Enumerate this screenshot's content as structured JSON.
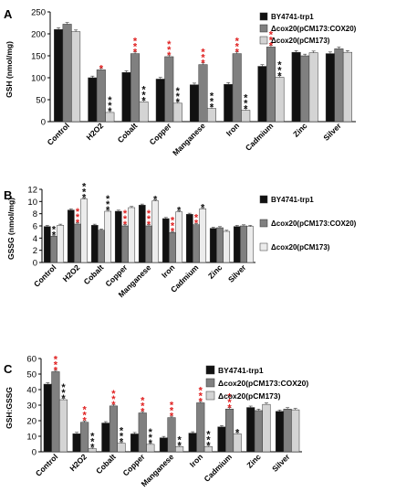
{
  "chart_data": [
    {
      "panel": "A",
      "type": "bar",
      "ylabel": "GSH (nmol/mg)",
      "ylim": [
        0,
        250
      ],
      "yticks": [
        0,
        50,
        100,
        150,
        200,
        250
      ],
      "categories": [
        "Control",
        "H2O2",
        "Cobalt",
        "Copper",
        "Manganese",
        "Iron",
        "Cadmium",
        "Zinc",
        "Silver"
      ],
      "legend_position": "top-right",
      "series": [
        {
          "name": "BY4741-trp1",
          "color": "#111111",
          "values": [
            210,
            100,
            112,
            97,
            84,
            85,
            126,
            158,
            155
          ]
        },
        {
          "name": "Δcox20(pCM173:COX20)",
          "color": "#808080",
          "values": [
            222,
            118,
            155,
            148,
            130,
            155,
            170,
            150,
            166
          ]
        },
        {
          "name": "Δcox20(pCM173)",
          "color": "#d4d4d4",
          "values": [
            205,
            21,
            45,
            42,
            30,
            26,
            101,
            157,
            158
          ]
        }
      ],
      "annotations": [
        {
          "category": "H2O2",
          "series": 1,
          "label": "*",
          "color": "#e02020"
        },
        {
          "category": "H2O2",
          "series": 2,
          "label": "***",
          "color": "#111111"
        },
        {
          "category": "Cobalt",
          "series": 1,
          "label": "***",
          "color": "#e02020"
        },
        {
          "category": "Cobalt",
          "series": 2,
          "label": "***",
          "color": "#111111"
        },
        {
          "category": "Copper",
          "series": 1,
          "label": "***",
          "color": "#e02020"
        },
        {
          "category": "Copper",
          "series": 2,
          "label": "***",
          "color": "#111111"
        },
        {
          "category": "Manganese",
          "series": 1,
          "label": "***",
          "color": "#e02020"
        },
        {
          "category": "Manganese",
          "series": 2,
          "label": "***",
          "color": "#111111"
        },
        {
          "category": "Iron",
          "series": 1,
          "label": "***",
          "color": "#e02020"
        },
        {
          "category": "Iron",
          "series": 2,
          "label": "***",
          "color": "#111111"
        },
        {
          "category": "Cadmium",
          "series": 1,
          "label": "***",
          "color": "#e02020"
        },
        {
          "category": "Cadmium",
          "series": 2,
          "label": "***",
          "color": "#111111"
        }
      ]
    },
    {
      "panel": "B",
      "type": "bar",
      "ylabel": "GSSG (nmol/mg)",
      "ylim": [
        0,
        12
      ],
      "yticks": [
        0,
        2,
        4,
        6,
        8,
        10,
        12
      ],
      "categories": [
        "Control",
        "H2O2",
        "Cobalt",
        "Copper",
        "Manganese",
        "Iron",
        "Cadmium",
        "Zinc",
        "Silver"
      ],
      "legend_position": "right",
      "series": [
        {
          "name": "BY4741-trp1",
          "color": "#111111",
          "values": [
            5.9,
            8.6,
            6.1,
            8.4,
            9.4,
            7.2,
            7.9,
            5.6,
            5.9
          ]
        },
        {
          "name": "Δcox20(pCM173:COX20)",
          "color": "#808080",
          "values": [
            4.3,
            6.3,
            5.3,
            6.0,
            6.0,
            4.9,
            6.2,
            5.7,
            6.0
          ]
        },
        {
          "name": "Δcox20(pCM173)",
          "color": "#ececec",
          "values": [
            6.1,
            10.4,
            8.4,
            9.0,
            10.1,
            8.3,
            8.8,
            5.1,
            5.9
          ]
        }
      ],
      "annotations": [
        {
          "category": "Control",
          "series": 1,
          "label": "**",
          "color": "#111111"
        },
        {
          "category": "H2O2",
          "series": 1,
          "label": "***",
          "color": "#e02020"
        },
        {
          "category": "H2O2",
          "series": 2,
          "label": "***",
          "color": "#111111"
        },
        {
          "category": "Cobalt",
          "series": 2,
          "label": "***",
          "color": "#111111"
        },
        {
          "category": "Copper",
          "series": 1,
          "label": "***",
          "color": "#e02020"
        },
        {
          "category": "Manganese",
          "series": 1,
          "label": "***",
          "color": "#e02020"
        },
        {
          "category": "Manganese",
          "series": 2,
          "label": "*",
          "color": "#111111"
        },
        {
          "category": "Iron",
          "series": 1,
          "label": "***",
          "color": "#e02020"
        },
        {
          "category": "Iron",
          "series": 2,
          "label": "*",
          "color": "#111111"
        },
        {
          "category": "Cadmium",
          "series": 1,
          "label": "**",
          "color": "#e02020"
        },
        {
          "category": "Cadmium",
          "series": 2,
          "label": "*",
          "color": "#111111"
        }
      ]
    },
    {
      "panel": "C",
      "type": "bar",
      "ylabel": "GSH:GSSG",
      "ylim": [
        0,
        60
      ],
      "yticks": [
        0,
        10,
        20,
        30,
        40,
        50,
        60
      ],
      "categories": [
        "Control",
        "H2O2",
        "Cobalt",
        "Copper",
        "Manganese",
        "Iron",
        "Cadmium",
        "Zinc",
        "Silver"
      ],
      "legend_position": "top-right",
      "series": [
        {
          "name": "BY4741-trp1",
          "color": "#111111",
          "values": [
            43.5,
            11.6,
            18.5,
            11.5,
            9.0,
            12.0,
            16.0,
            28.5,
            26.0
          ]
        },
        {
          "name": "Δcox20(pCM173:COX20)",
          "color": "#808080",
          "values": [
            51.5,
            19.0,
            29.5,
            25.0,
            22.0,
            31.5,
            27.5,
            26.5,
            27.5
          ]
        },
        {
          "name": "Δcox20(pCM173)",
          "color": "#d4d4d4",
          "values": [
            33.5,
            2.0,
            5.5,
            4.8,
            3.3,
            3.3,
            11.5,
            30.5,
            27.0
          ]
        }
      ],
      "annotations": [
        {
          "category": "Control",
          "series": 1,
          "label": "***",
          "color": "#e02020"
        },
        {
          "category": "Control",
          "series": 2,
          "label": "***",
          "color": "#111111"
        },
        {
          "category": "H2O2",
          "series": 1,
          "label": "***",
          "color": "#e02020"
        },
        {
          "category": "H2O2",
          "series": 2,
          "label": "***",
          "color": "#111111"
        },
        {
          "category": "Cobalt",
          "series": 1,
          "label": "***",
          "color": "#e02020"
        },
        {
          "category": "Cobalt",
          "series": 2,
          "label": "***",
          "color": "#111111"
        },
        {
          "category": "Copper",
          "series": 1,
          "label": "***",
          "color": "#e02020"
        },
        {
          "category": "Copper",
          "series": 2,
          "label": "***",
          "color": "#111111"
        },
        {
          "category": "Manganese",
          "series": 1,
          "label": "***",
          "color": "#e02020"
        },
        {
          "category": "Manganese",
          "series": 2,
          "label": "**",
          "color": "#111111"
        },
        {
          "category": "Iron",
          "series": 1,
          "label": "***",
          "color": "#e02020"
        },
        {
          "category": "Iron",
          "series": 2,
          "label": "***",
          "color": "#111111"
        },
        {
          "category": "Cadmium",
          "series": 1,
          "label": "***",
          "color": "#e02020"
        },
        {
          "category": "Cadmium",
          "series": 2,
          "label": "*",
          "color": "#111111"
        }
      ]
    }
  ]
}
